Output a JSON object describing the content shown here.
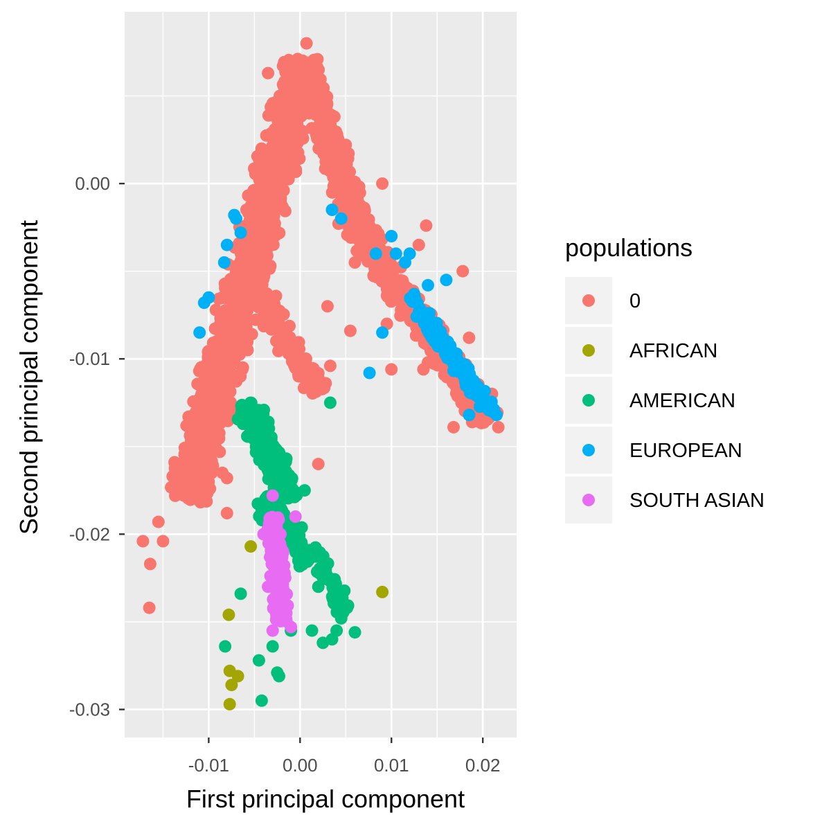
{
  "chart_data": {
    "type": "scatter",
    "xlabel": "First principal component",
    "ylabel": "Second principal component",
    "xlim": [
      -0.0192,
      0.0237
    ],
    "ylim": [
      -0.0316,
      0.0098
    ],
    "x_ticks": [
      -0.01,
      0.0,
      0.01,
      0.02
    ],
    "x_tick_labels": [
      "-0.01",
      "0.00",
      "0.01",
      "0.02"
    ],
    "y_ticks": [
      0.0,
      -0.01,
      -0.02,
      -0.03
    ],
    "y_tick_labels": [
      "0.00",
      "-0.01",
      "-0.02",
      "-0.03"
    ],
    "grid": true,
    "legend": {
      "title": "populations",
      "placement": "right",
      "entries": [
        "0",
        "AFRICAN",
        "AMERICAN",
        "EUROPEAN",
        "SOUTH ASIAN"
      ]
    },
    "series": [
      {
        "name": "0",
        "color": "#F8766D",
        "clusters": [
          {
            "from": [
              -0.0125,
              -0.018
            ],
            "to": [
              0.0005,
              0.007
            ],
            "width": 0.0045,
            "count": 1500
          },
          {
            "from": [
              0.0005,
              0.007
            ],
            "to": [
              0.006,
              -0.002
            ],
            "width": 0.003,
            "count": 500
          },
          {
            "from": [
              0.005,
              -0.0015
            ],
            "to": [
              0.0205,
              -0.0135
            ],
            "width": 0.003,
            "count": 650
          },
          {
            "from": [
              -0.006,
              -0.005
            ],
            "to": [
              0.002,
              -0.012
            ],
            "width": 0.003,
            "count": 160
          }
        ],
        "points": [
          [
            -0.0172,
            -0.0204
          ],
          [
            -0.0164,
            -0.0217
          ],
          [
            -0.0165,
            -0.0242
          ],
          [
            -0.015,
            -0.0204
          ],
          [
            -0.0155,
            -0.0193
          ],
          [
            -0.0085,
            -0.0165
          ],
          [
            -0.008,
            -0.0168
          ],
          [
            -0.008,
            -0.0188
          ],
          [
            -0.0047,
            -0.0134
          ],
          [
            -0.004,
            -0.0158
          ],
          [
            0.002,
            -0.016
          ],
          [
            0.0033,
            -0.0104
          ],
          [
            0.0055,
            -0.0084
          ],
          [
            0.0095,
            -0.008
          ],
          [
            0.01,
            -0.0106
          ],
          [
            0.0135,
            -0.0106
          ],
          [
            0.014,
            -0.0102
          ],
          [
            0.0135,
            -0.0076
          ],
          [
            0.006,
            -0.0045
          ],
          [
            0.009,
            0.0
          ],
          [
            0.0138,
            -0.0024
          ],
          [
            0.013,
            -0.0035
          ],
          [
            0.0178,
            -0.005
          ],
          [
            0.0185,
            -0.0088
          ],
          [
            0.021,
            -0.012
          ],
          [
            0.0217,
            -0.0139
          ],
          [
            0.02,
            -0.0136
          ],
          [
            0.0168,
            -0.0139
          ],
          [
            0.0007,
            0.008
          ],
          [
            -0.0035,
            0.0063
          ],
          [
            0.0045,
            0.002
          ],
          [
            0.003,
            -0.007
          ]
        ]
      },
      {
        "name": "AFRICAN",
        "color": "#A3A500",
        "points": [
          [
            -0.0054,
            -0.0207
          ],
          [
            0.009,
            -0.0233
          ],
          [
            -0.0078,
            -0.0246
          ],
          [
            -0.0077,
            -0.0278
          ],
          [
            -0.0075,
            -0.0286
          ],
          [
            -0.0068,
            -0.0281
          ],
          [
            -0.0077,
            -0.0297
          ]
        ]
      },
      {
        "name": "AMERICAN",
        "color": "#00BF7D",
        "clusters": [
          {
            "from": [
              -0.006,
              -0.0125
            ],
            "to": [
              -0.001,
              -0.018
            ],
            "width": 0.003,
            "count": 230
          },
          {
            "from": [
              -0.004,
              -0.018
            ],
            "to": [
              0.001,
              -0.0215
            ],
            "width": 0.003,
            "count": 140
          },
          {
            "from": [
              0.001,
              -0.0205
            ],
            "to": [
              0.005,
              -0.0245
            ],
            "width": 0.002,
            "count": 50
          }
        ],
        "points": [
          [
            0.0033,
            -0.0125
          ],
          [
            0.004,
            -0.0255
          ],
          [
            0.006,
            -0.0256
          ],
          [
            0.0045,
            -0.0248
          ],
          [
            0.0025,
            -0.0262
          ],
          [
            0.0035,
            -0.026
          ],
          [
            0.0013,
            -0.0255
          ],
          [
            -0.0065,
            -0.0234
          ],
          [
            -0.0082,
            -0.0264
          ],
          [
            -0.0045,
            -0.0272
          ],
          [
            -0.003,
            -0.0264
          ],
          [
            -0.0025,
            -0.0279
          ],
          [
            -0.0023,
            -0.0281
          ],
          [
            -0.0042,
            -0.0295
          ],
          [
            -0.001,
            -0.0255
          ],
          [
            0.002,
            -0.023
          ],
          [
            0.0028,
            -0.022
          ],
          [
            0.0005,
            -0.0175
          ]
        ]
      },
      {
        "name": "EUROPEAN",
        "color": "#00B0F6",
        "clusters": [
          {
            "from": [
              0.012,
              -0.0065
            ],
            "to": [
              0.021,
              -0.013
            ],
            "width": 0.0016,
            "count": 160
          }
        ],
        "points": [
          [
            -0.0072,
            -0.0018
          ],
          [
            -0.007,
            -0.002
          ],
          [
            -0.0065,
            -0.0028
          ],
          [
            -0.008,
            -0.0035
          ],
          [
            -0.0083,
            -0.0045
          ],
          [
            -0.0105,
            -0.0068
          ],
          [
            -0.01,
            -0.0065
          ],
          [
            -0.011,
            -0.0085
          ],
          [
            0.01,
            -0.003
          ],
          [
            0.0105,
            -0.004
          ],
          [
            0.0083,
            -0.004
          ],
          [
            0.009,
            -0.0085
          ],
          [
            0.0076,
            -0.0108
          ],
          [
            0.012,
            -0.004
          ],
          [
            0.0115,
            -0.0045
          ],
          [
            0.014,
            -0.0058
          ],
          [
            0.016,
            -0.0055
          ],
          [
            0.019,
            -0.012
          ],
          [
            0.021,
            -0.013
          ],
          [
            0.0215,
            -0.0132
          ],
          [
            0.0185,
            -0.0132
          ],
          [
            0.0125,
            -0.0063
          ],
          [
            0.0045,
            -0.002
          ],
          [
            0.0035,
            -0.0015
          ]
        ]
      },
      {
        "name": "SOUTH ASIAN",
        "color": "#E76BF3",
        "clusters": [
          {
            "from": [
              -0.003,
              -0.019
            ],
            "to": [
              -0.002,
              -0.025
            ],
            "width": 0.0016,
            "count": 300
          }
        ],
        "points": [
          [
            -0.003,
            -0.0178
          ],
          [
            -0.003,
            -0.0255
          ],
          [
            -0.001,
            -0.0253
          ],
          [
            -0.004,
            -0.02
          ],
          [
            -0.0005,
            -0.019
          ],
          [
            -0.0015,
            -0.0245
          ],
          [
            -0.0035,
            -0.023
          ]
        ]
      }
    ]
  }
}
